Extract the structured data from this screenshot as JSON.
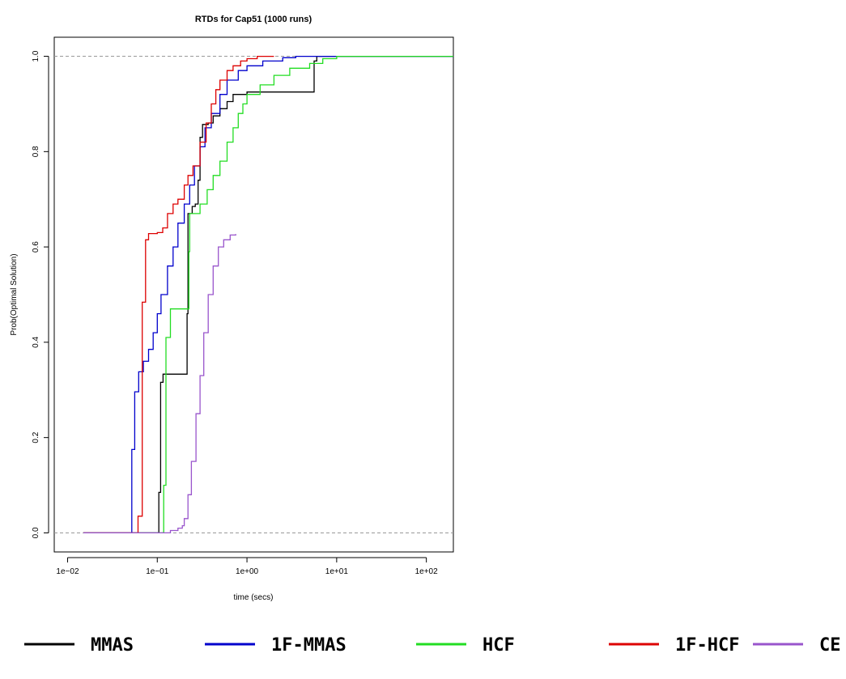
{
  "chart_data": {
    "type": "line",
    "title": "RTDs for Cap51 (1000 runs)",
    "xlabel": "time (secs)",
    "ylabel": "Prob(Optimal Solution)",
    "x_scale": "log10",
    "xlim": [
      0.0071,
      200
    ],
    "ylim": [
      -0.04,
      1.04
    ],
    "x_ticks": [
      {
        "value": 0.01,
        "label": "1e−02"
      },
      {
        "value": 0.1,
        "label": "1e−01"
      },
      {
        "value": 1,
        "label": "1e+00"
      },
      {
        "value": 10,
        "label": "1e+01"
      },
      {
        "value": 100,
        "label": "1e+02"
      }
    ],
    "y_ticks": [
      {
        "value": 0.0,
        "label": "0.0"
      },
      {
        "value": 0.2,
        "label": "0.2"
      },
      {
        "value": 0.4,
        "label": "0.4"
      },
      {
        "value": 0.6,
        "label": "0.6"
      },
      {
        "value": 0.8,
        "label": "0.8"
      },
      {
        "value": 1.0,
        "label": "1.0"
      }
    ],
    "reference_lines": [
      0,
      1
    ],
    "legend_position": "bottom",
    "series": [
      {
        "name": "MMAS",
        "color": "#000000",
        "points": [
          [
            0.015,
            0
          ],
          [
            0.098,
            0
          ],
          [
            0.104,
            0.085
          ],
          [
            0.109,
            0.316
          ],
          [
            0.116,
            0.333
          ],
          [
            0.205,
            0.333
          ],
          [
            0.215,
            0.46
          ],
          [
            0.22,
            0.67
          ],
          [
            0.245,
            0.685
          ],
          [
            0.265,
            0.69
          ],
          [
            0.285,
            0.74
          ],
          [
            0.3,
            0.83
          ],
          [
            0.32,
            0.857
          ],
          [
            0.37,
            0.86
          ],
          [
            0.42,
            0.875
          ],
          [
            0.5,
            0.89
          ],
          [
            0.6,
            0.905
          ],
          [
            0.7,
            0.92
          ],
          [
            1.0,
            0.925
          ],
          [
            5.3,
            0.925
          ],
          [
            5.6,
            0.99
          ],
          [
            6.0,
            1.0
          ],
          [
            200,
            1.0
          ]
        ]
      },
      {
        "name": "1F-MMAS",
        "color": "#0000cc",
        "points": [
          [
            0.015,
            0
          ],
          [
            0.05,
            0
          ],
          [
            0.052,
            0.175
          ],
          [
            0.056,
            0.296
          ],
          [
            0.062,
            0.338
          ],
          [
            0.07,
            0.36
          ],
          [
            0.08,
            0.385
          ],
          [
            0.09,
            0.42
          ],
          [
            0.1,
            0.46
          ],
          [
            0.11,
            0.5
          ],
          [
            0.13,
            0.56
          ],
          [
            0.15,
            0.6
          ],
          [
            0.17,
            0.65
          ],
          [
            0.2,
            0.69
          ],
          [
            0.23,
            0.73
          ],
          [
            0.26,
            0.77
          ],
          [
            0.3,
            0.81
          ],
          [
            0.34,
            0.85
          ],
          [
            0.4,
            0.88
          ],
          [
            0.5,
            0.92
          ],
          [
            0.6,
            0.95
          ],
          [
            0.8,
            0.97
          ],
          [
            1.0,
            0.98
          ],
          [
            1.5,
            0.99
          ],
          [
            2.5,
            0.997
          ],
          [
            3.5,
            1.0
          ],
          [
            200,
            1.0
          ]
        ]
      },
      {
        "name": "HCF",
        "color": "#22dd22",
        "points": [
          [
            0.015,
            0
          ],
          [
            0.112,
            0
          ],
          [
            0.118,
            0.1
          ],
          [
            0.125,
            0.41
          ],
          [
            0.14,
            0.47
          ],
          [
            0.215,
            0.47
          ],
          [
            0.225,
            0.59
          ],
          [
            0.23,
            0.67
          ],
          [
            0.27,
            0.67
          ],
          [
            0.3,
            0.69
          ],
          [
            0.36,
            0.72
          ],
          [
            0.42,
            0.75
          ],
          [
            0.5,
            0.78
          ],
          [
            0.6,
            0.82
          ],
          [
            0.7,
            0.85
          ],
          [
            0.8,
            0.88
          ],
          [
            0.9,
            0.9
          ],
          [
            1.0,
            0.92
          ],
          [
            1.4,
            0.94
          ],
          [
            2.0,
            0.96
          ],
          [
            3.0,
            0.975
          ],
          [
            5.0,
            0.985
          ],
          [
            7.0,
            0.995
          ],
          [
            10.0,
            1.0
          ],
          [
            200,
            1.0
          ]
        ]
      },
      {
        "name": "1F-HCF",
        "color": "#dd0000",
        "points": [
          [
            0.015,
            0
          ],
          [
            0.059,
            0
          ],
          [
            0.061,
            0.035
          ],
          [
            0.068,
            0.484
          ],
          [
            0.074,
            0.615
          ],
          [
            0.08,
            0.628
          ],
          [
            0.1,
            0.63
          ],
          [
            0.115,
            0.64
          ],
          [
            0.13,
            0.67
          ],
          [
            0.15,
            0.69
          ],
          [
            0.17,
            0.7
          ],
          [
            0.2,
            0.73
          ],
          [
            0.22,
            0.75
          ],
          [
            0.25,
            0.77
          ],
          [
            0.3,
            0.82
          ],
          [
            0.35,
            0.86
          ],
          [
            0.4,
            0.9
          ],
          [
            0.45,
            0.93
          ],
          [
            0.5,
            0.95
          ],
          [
            0.6,
            0.97
          ],
          [
            0.7,
            0.98
          ],
          [
            0.85,
            0.99
          ],
          [
            1.0,
            0.995
          ],
          [
            1.3,
            1.0
          ],
          [
            2.0,
            1.0
          ]
        ]
      },
      {
        "name": "CE",
        "color": "#9955cc",
        "points": [
          [
            0.015,
            0
          ],
          [
            0.105,
            0
          ],
          [
            0.14,
            0.005
          ],
          [
            0.17,
            0.01
          ],
          [
            0.19,
            0.015
          ],
          [
            0.2,
            0.03
          ],
          [
            0.22,
            0.08
          ],
          [
            0.24,
            0.15
          ],
          [
            0.27,
            0.25
          ],
          [
            0.3,
            0.33
          ],
          [
            0.33,
            0.42
          ],
          [
            0.37,
            0.5
          ],
          [
            0.42,
            0.56
          ],
          [
            0.48,
            0.6
          ],
          [
            0.55,
            0.615
          ],
          [
            0.65,
            0.625
          ],
          [
            0.75,
            0.627
          ]
        ]
      }
    ]
  }
}
